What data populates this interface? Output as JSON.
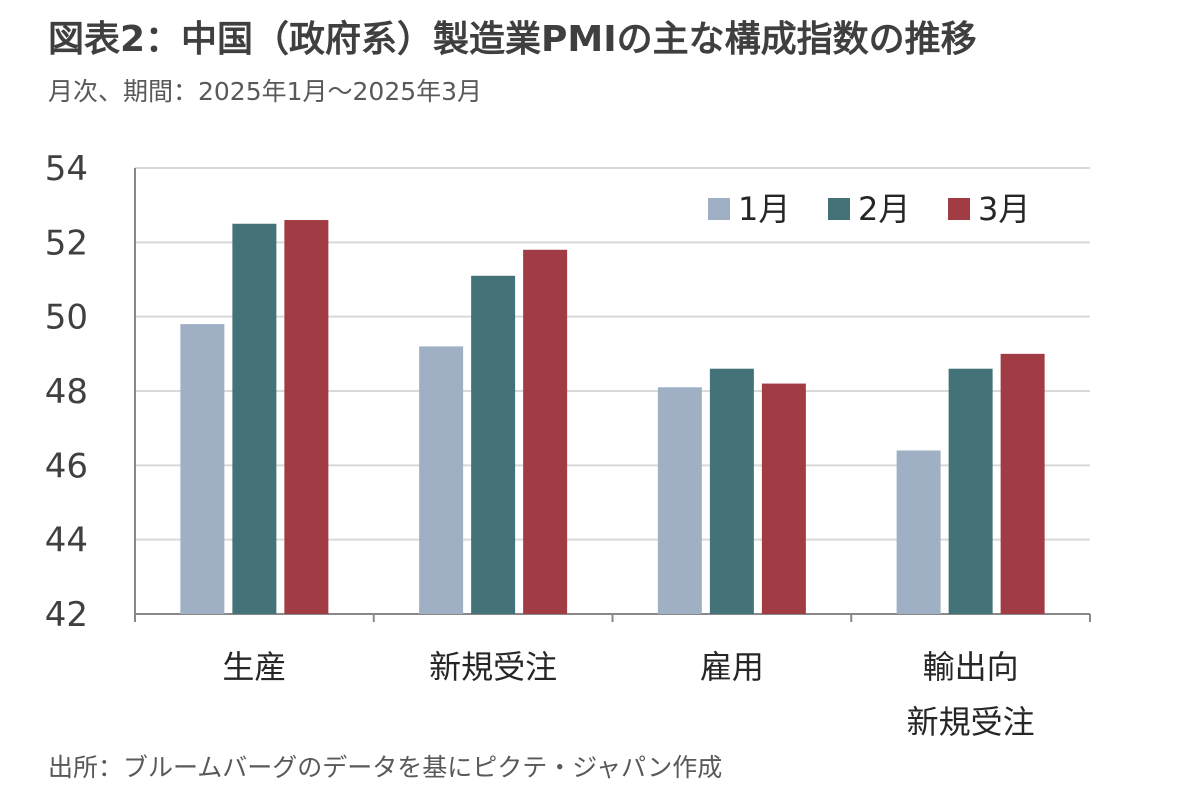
{
  "title": "図表2：中国（政府系）製造業PMIの主な構成指数の推移",
  "subtitle": "月次、期間：2025年1月～2025年3月",
  "source": "出所：ブルームバーグのデータを基にピクテ・ジャパン作成",
  "colors": {
    "s1": "#a0b0c4",
    "s2": "#437378",
    "s3": "#a13c44",
    "grid": "#d9d9d9",
    "axis": "#888888"
  },
  "chart_data": {
    "type": "bar",
    "categories": [
      [
        "生産"
      ],
      [
        "新規受注"
      ],
      [
        "雇用"
      ],
      [
        "輸出向",
        "新規受注"
      ]
    ],
    "series": [
      {
        "name": "1月",
        "values": [
          49.8,
          49.2,
          48.1,
          46.4
        ]
      },
      {
        "name": "2月",
        "values": [
          52.5,
          51.1,
          48.6,
          48.6
        ]
      },
      {
        "name": "3月",
        "values": [
          52.6,
          51.8,
          48.2,
          49.0
        ]
      }
    ],
    "ylim": [
      42,
      54
    ],
    "yticks": [
      54,
      52,
      50,
      48,
      46,
      44,
      42
    ],
    "grid": true,
    "legend": "top-right"
  }
}
